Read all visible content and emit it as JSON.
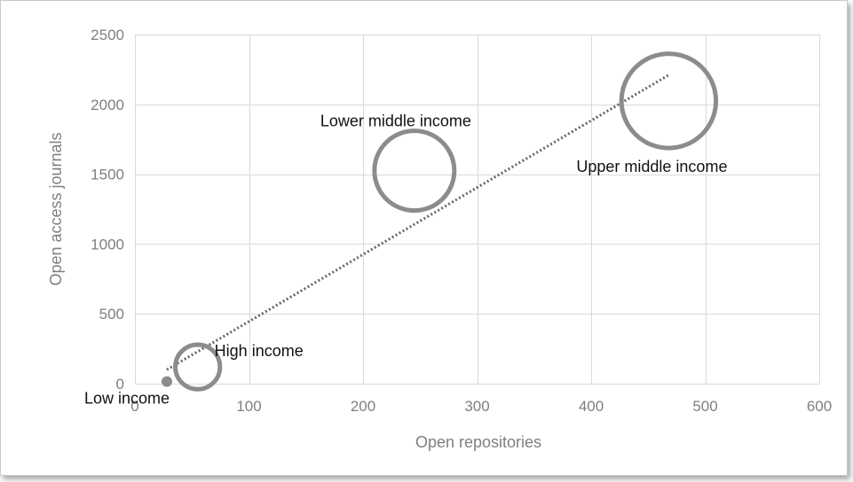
{
  "chart_data": {
    "type": "scatter",
    "subtype": "bubble",
    "title": "",
    "xlabel": "Open repositories",
    "ylabel": "Open access journals",
    "xlim": [
      0,
      600
    ],
    "ylim": [
      0,
      2500
    ],
    "x_ticks": [
      0,
      100,
      200,
      300,
      400,
      500,
      600
    ],
    "y_ticks": [
      0,
      500,
      1000,
      1500,
      2000,
      2500
    ],
    "grid": true,
    "legend": "none",
    "colors": {
      "bubble": "#8c8c8c",
      "trendline": "#666666",
      "grid": "#d9d9d9",
      "axis_text": "#7f7f7f",
      "label_text": "#111111"
    },
    "points": [
      {
        "label": "Low income",
        "x": 28,
        "y": 15,
        "size": 1,
        "filled": true
      },
      {
        "label": "High income",
        "x": 55,
        "y": 120,
        "size": 3.5,
        "filled": false
      },
      {
        "label": "Lower middle income",
        "x": 245,
        "y": 1525,
        "size": 10.5,
        "filled": false
      },
      {
        "label": "Upper middle income",
        "x": 468,
        "y": 2025,
        "size": 14.5,
        "filled": false
      }
    ],
    "trendline": {
      "style": "dotted",
      "x": [
        28,
        468
      ],
      "y": [
        100,
        2210
      ]
    }
  }
}
